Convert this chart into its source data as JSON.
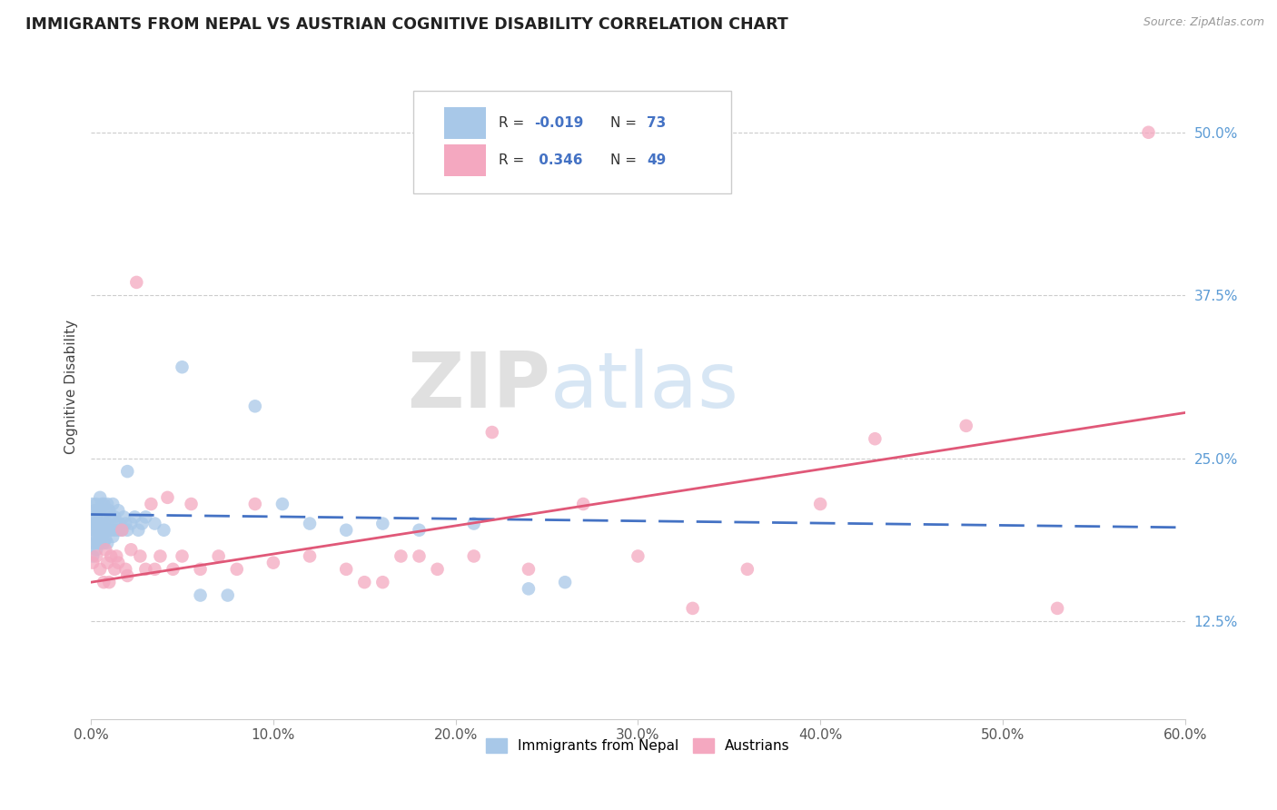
{
  "title": "IMMIGRANTS FROM NEPAL VS AUSTRIAN COGNITIVE DISABILITY CORRELATION CHART",
  "source_text": "Source: ZipAtlas.com",
  "ylabel": "Cognitive Disability",
  "xlim": [
    0.0,
    0.6
  ],
  "ylim": [
    0.05,
    0.56
  ],
  "yticks": [
    0.125,
    0.25,
    0.375,
    0.5
  ],
  "ytick_labels": [
    "12.5%",
    "25.0%",
    "37.5%",
    "50.0%"
  ],
  "xticks": [
    0.0,
    0.1,
    0.2,
    0.3,
    0.4,
    0.5,
    0.6
  ],
  "xtick_labels": [
    "0.0%",
    "10.0%",
    "20.0%",
    "30.0%",
    "40.0%",
    "50.0%",
    "60.0%"
  ],
  "blue_color": "#a8c8e8",
  "pink_color": "#f4a8c0",
  "blue_line_color": "#4472c4",
  "pink_line_color": "#e05878",
  "legend_label_blue": "Immigrants from Nepal",
  "legend_label_pink": "Austrians",
  "watermark_ZIP": "ZIP",
  "watermark_atlas": "atlas",
  "background_color": "#ffffff",
  "grid_color": "#cccccc",
  "blue_trend": [
    0.207,
    0.197
  ],
  "pink_trend": [
    0.155,
    0.285
  ],
  "nepal_x": [
    0.001,
    0.001,
    0.001,
    0.001,
    0.001,
    0.002,
    0.002,
    0.002,
    0.002,
    0.003,
    0.003,
    0.003,
    0.003,
    0.003,
    0.003,
    0.004,
    0.004,
    0.004,
    0.004,
    0.005,
    0.005,
    0.005,
    0.005,
    0.006,
    0.006,
    0.006,
    0.006,
    0.007,
    0.007,
    0.007,
    0.007,
    0.008,
    0.008,
    0.008,
    0.009,
    0.009,
    0.009,
    0.01,
    0.01,
    0.011,
    0.011,
    0.012,
    0.012,
    0.013,
    0.013,
    0.014,
    0.015,
    0.015,
    0.016,
    0.017,
    0.018,
    0.019,
    0.02,
    0.022,
    0.024,
    0.026,
    0.028,
    0.03,
    0.035,
    0.04,
    0.05,
    0.06,
    0.075,
    0.09,
    0.105,
    0.12,
    0.14,
    0.16,
    0.18,
    0.21,
    0.24,
    0.26,
    0.02
  ],
  "nepal_y": [
    0.195,
    0.205,
    0.185,
    0.215,
    0.175,
    0.2,
    0.21,
    0.195,
    0.185,
    0.198,
    0.205,
    0.19,
    0.215,
    0.18,
    0.2,
    0.195,
    0.21,
    0.185,
    0.2,
    0.195,
    0.21,
    0.185,
    0.22,
    0.2,
    0.215,
    0.19,
    0.205,
    0.195,
    0.215,
    0.185,
    0.2,
    0.195,
    0.21,
    0.188,
    0.2,
    0.215,
    0.185,
    0.195,
    0.21,
    0.195,
    0.205,
    0.19,
    0.215,
    0.195,
    0.205,
    0.2,
    0.195,
    0.21,
    0.2,
    0.195,
    0.205,
    0.2,
    0.195,
    0.2,
    0.205,
    0.195,
    0.2,
    0.205,
    0.2,
    0.195,
    0.32,
    0.145,
    0.145,
    0.29,
    0.215,
    0.2,
    0.195,
    0.2,
    0.195,
    0.2,
    0.15,
    0.155,
    0.24
  ],
  "austria_x": [
    0.001,
    0.003,
    0.005,
    0.007,
    0.008,
    0.009,
    0.01,
    0.011,
    0.013,
    0.014,
    0.015,
    0.017,
    0.019,
    0.02,
    0.022,
    0.025,
    0.027,
    0.03,
    0.033,
    0.035,
    0.038,
    0.042,
    0.045,
    0.05,
    0.055,
    0.06,
    0.07,
    0.08,
    0.09,
    0.1,
    0.12,
    0.14,
    0.16,
    0.18,
    0.21,
    0.24,
    0.27,
    0.3,
    0.33,
    0.36,
    0.4,
    0.43,
    0.48,
    0.53,
    0.58,
    0.15,
    0.17,
    0.19,
    0.22
  ],
  "austria_y": [
    0.17,
    0.175,
    0.165,
    0.155,
    0.18,
    0.17,
    0.155,
    0.175,
    0.165,
    0.175,
    0.17,
    0.195,
    0.165,
    0.16,
    0.18,
    0.385,
    0.175,
    0.165,
    0.215,
    0.165,
    0.175,
    0.22,
    0.165,
    0.175,
    0.215,
    0.165,
    0.175,
    0.165,
    0.215,
    0.17,
    0.175,
    0.165,
    0.155,
    0.175,
    0.175,
    0.165,
    0.215,
    0.175,
    0.135,
    0.165,
    0.215,
    0.265,
    0.275,
    0.135,
    0.5,
    0.155,
    0.175,
    0.165,
    0.27
  ]
}
